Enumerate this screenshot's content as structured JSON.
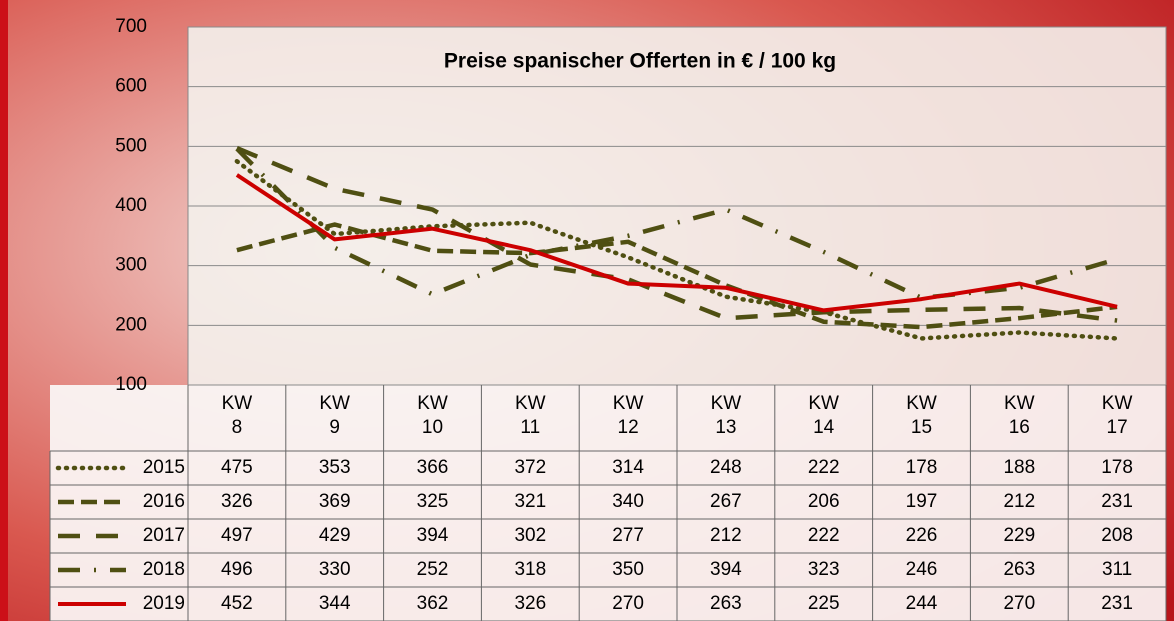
{
  "chart_data": {
    "type": "line",
    "title": "Preise spanischer Offerten in € / 100 kg",
    "categories": [
      "KW 8",
      "KW 9",
      "KW 10",
      "KW 11",
      "KW 12",
      "KW 13",
      "KW 14",
      "KW 15",
      "KW 16",
      "KW 17"
    ],
    "ylim": [
      100,
      700
    ],
    "yticks": [
      100,
      200,
      300,
      400,
      500,
      600,
      700
    ],
    "grid": true,
    "series": [
      {
        "name": "2015",
        "color": "#4f4f12",
        "style": "dotted",
        "values": [
          475,
          353,
          366,
          372,
          314,
          248,
          222,
          178,
          188,
          178
        ]
      },
      {
        "name": "2016",
        "color": "#4f4f12",
        "style": "dashed",
        "values": [
          326,
          369,
          325,
          321,
          340,
          267,
          206,
          197,
          212,
          231
        ]
      },
      {
        "name": "2017",
        "color": "#4f4f12",
        "style": "long-dash",
        "values": [
          497,
          429,
          394,
          302,
          277,
          212,
          222,
          226,
          229,
          208
        ]
      },
      {
        "name": "2018",
        "color": "#4f4f12",
        "style": "dash-dot",
        "values": [
          496,
          330,
          252,
          318,
          350,
          394,
          323,
          246,
          263,
          311
        ]
      },
      {
        "name": "2019",
        "color": "#cc0000",
        "style": "solid",
        "values": [
          452,
          344,
          362,
          326,
          270,
          263,
          225,
          244,
          270,
          231
        ]
      }
    ]
  }
}
